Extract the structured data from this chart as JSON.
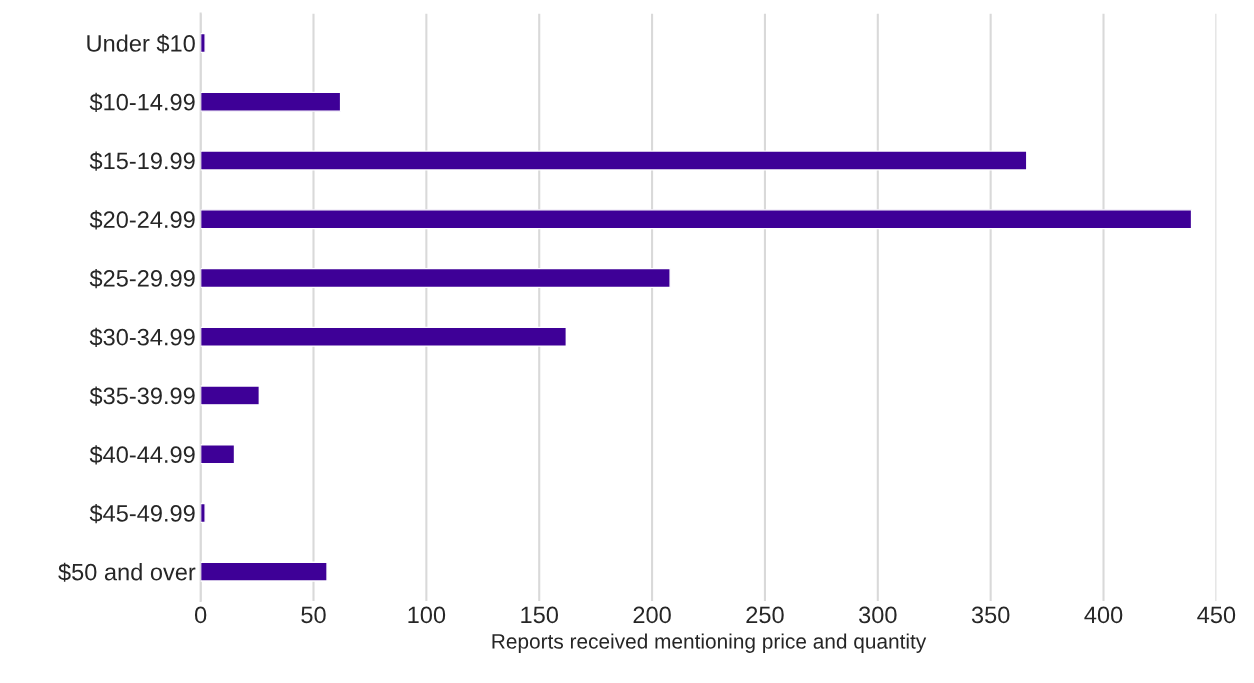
{
  "chart_data": {
    "type": "bar",
    "orientation": "horizontal",
    "xlabel": "Reports received mentioning price and quantity",
    "categories": [
      "Under $10",
      "$10-14.99",
      "$15-19.99",
      "$20-24.99",
      "$25-29.99",
      "$30-34.99",
      "$35-39.99",
      "$40-44.99",
      "$45-49.99",
      "$50 and over"
    ],
    "values": [
      2,
      62,
      366,
      439,
      208,
      162,
      26,
      15,
      2,
      56
    ],
    "color": "#3e0097",
    "xlim": [
      0,
      450
    ],
    "xticks": [
      0,
      50,
      100,
      150,
      200,
      250,
      300,
      350,
      400,
      450
    ],
    "grid": "x",
    "legend": false
  }
}
